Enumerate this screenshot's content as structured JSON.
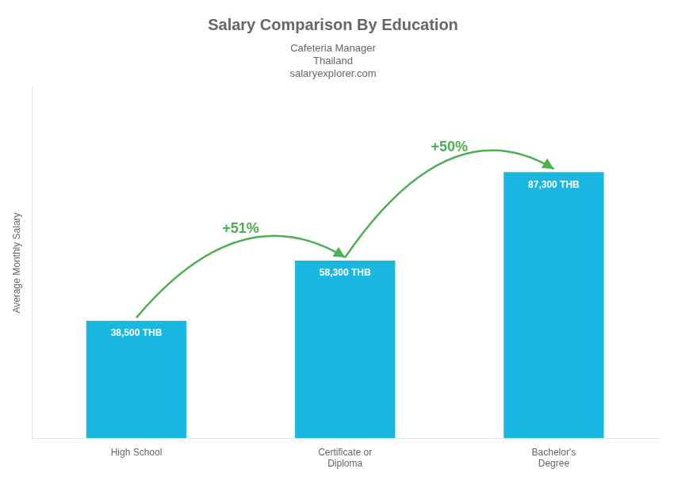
{
  "chart_data": {
    "type": "bar",
    "title": "Salary Comparison By Education",
    "subtitle": "Cafeteria Manager",
    "ylabel": "Average Monthly Salary",
    "categories": [
      "High School",
      "Certificate or\nDiploma",
      "Bachelor's\nDegree"
    ],
    "values": [
      38500,
      58300,
      87300
    ],
    "value_labels": [
      "38,500 THB",
      "58,300 THB",
      "87,300 THB"
    ],
    "data_labels": true,
    "color": "#1ab8e0",
    "ylim": [
      0,
      115000
    ],
    "tick_labels": "x",
    "grid": false,
    "annotations": [
      {
        "text": "Thailand"
      },
      {
        "text": "salaryexplorer.com"
      },
      {
        "text": "+51%",
        "from": "High School",
        "to": "Certificate or\nDiploma"
      },
      {
        "text": "+50%",
        "from": "Certificate or\nDiploma",
        "to": "Bachelor's\nDegree"
      }
    ]
  }
}
